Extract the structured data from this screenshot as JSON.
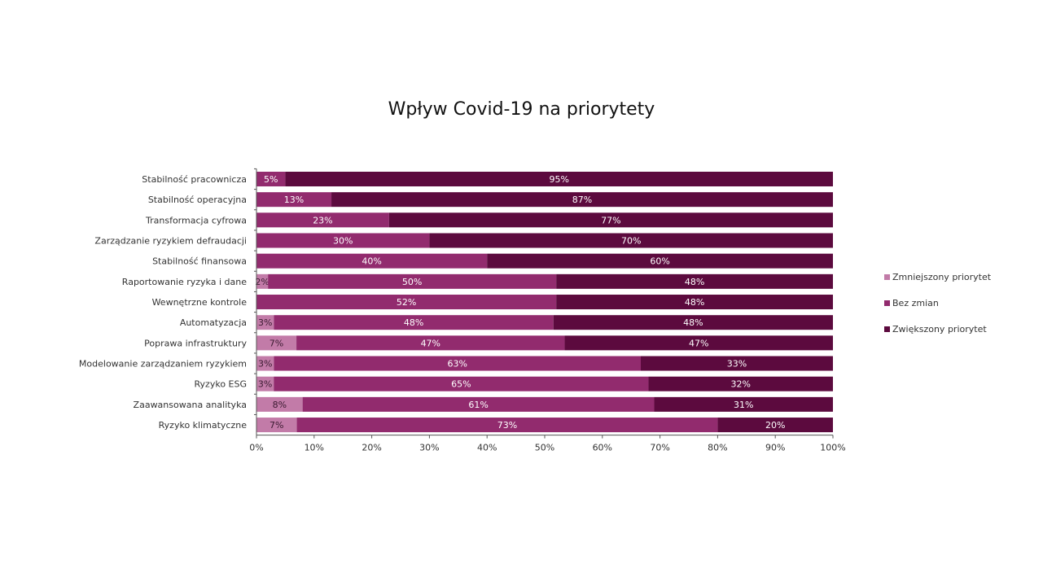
{
  "chart_data": {
    "type": "bar",
    "orientation": "horizontal",
    "stacked": "percent",
    "title": "Wpływ Covid-19 na priorytety",
    "categories": [
      "Stabilność pracownicza",
      "Stabilność operacyjna",
      "Transformacja cyfrowa",
      "Zarządzanie ryzykiem defraudacji",
      "Stabilność finansowa",
      "Raportowanie ryzyka i dane",
      "Wewnętrzne kontrole",
      "Automatyzacja",
      "Poprawa infrastruktury",
      "Modelowanie zarządzaniem ryzykiem",
      "Ryzyko ESG",
      "Zaawansowana analityka",
      "Ryzyko klimatyczne"
    ],
    "series": [
      {
        "name": "Zmniejszony priorytet",
        "color": "#c27ba8",
        "values": [
          0,
          0,
          0,
          0,
          0,
          2,
          0,
          3,
          7,
          3,
          3,
          8,
          7
        ],
        "labels": [
          "",
          "",
          "",
          "",
          "",
          "2%",
          "",
          "3%",
          "7%",
          "3%",
          "3%",
          "8%",
          "7%"
        ]
      },
      {
        "name": "Bez zmian",
        "color": "#922b6e",
        "values": [
          5,
          13,
          23,
          30,
          40,
          50,
          52,
          48,
          47,
          63,
          65,
          61,
          73
        ],
        "labels": [
          "5%",
          "13%",
          "23%",
          "30%",
          "40%",
          "50%",
          "52%",
          "48%",
          "47%",
          "63%",
          "65%",
          "61%",
          "73%"
        ]
      },
      {
        "name": "Zwiększony priorytet",
        "color": "#5c0a3e",
        "values": [
          95,
          87,
          77,
          70,
          60,
          48,
          48,
          48,
          47,
          33,
          32,
          31,
          20
        ],
        "labels": [
          "95%",
          "87%",
          "77%",
          "70%",
          "60%",
          "48%",
          "48%",
          "48%",
          "47%",
          "33%",
          "32%",
          "31%",
          "20%"
        ]
      }
    ],
    "xlim": [
      0,
      100
    ],
    "x_ticks": [
      "0%",
      "10%",
      "20%",
      "30%",
      "40%",
      "50%",
      "60%",
      "70%",
      "80%",
      "90%",
      "100%"
    ],
    "grid": false,
    "legend_position": "right"
  }
}
